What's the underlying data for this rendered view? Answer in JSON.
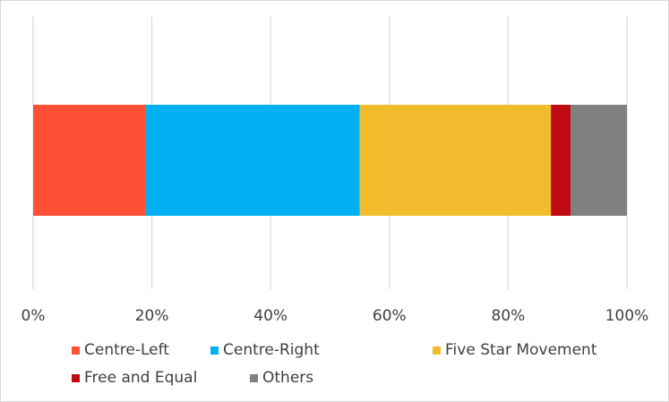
{
  "chart_data": {
    "type": "bar",
    "orientation": "horizontal",
    "stacking": "percent",
    "categories": [
      ""
    ],
    "series": [
      {
        "name": "Centre-Left",
        "values": [
          19.0
        ],
        "color": "#FF5035"
      },
      {
        "name": "Centre-Right",
        "values": [
          36.0
        ],
        "color": "#00B0F0"
      },
      {
        "name": "Five Star Movement",
        "values": [
          32.2
        ],
        "color": "#F2BC2E"
      },
      {
        "name": "Free and Equal",
        "values": [
          3.3
        ],
        "color": "#C00A14"
      },
      {
        "name": "Others",
        "values": [
          9.5
        ],
        "color": "#808080"
      }
    ],
    "x_ticks": [
      "0%",
      "20%",
      "40%",
      "60%",
      "80%",
      "100%"
    ],
    "xlim": [
      0,
      100
    ],
    "grid": true,
    "legend": "bottom",
    "title": "",
    "xlabel": "",
    "ylabel": ""
  }
}
